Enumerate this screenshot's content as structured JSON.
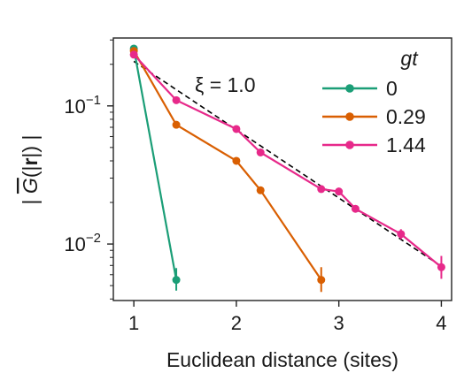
{
  "chart_data": {
    "type": "line",
    "xlabel": "Euclidean distance (sites)",
    "ylabel": "|G(|r|)|",
    "ylabel_parts": {
      "open": "| ",
      "symbol": "G",
      "inner_open": "(|",
      "bold": "r",
      "inner_close": "|)",
      "close": " |"
    },
    "xlim": [
      0.8,
      4.1
    ],
    "ylim": [
      0.0039,
      0.31
    ],
    "yscale": "log",
    "xticks": [
      1,
      2,
      3,
      4
    ],
    "xtick_labels": [
      "1",
      "2",
      "3",
      "4"
    ],
    "yticks": [
      0.01,
      0.1
    ],
    "ytick_labels": [
      {
        "base": "10",
        "exp": "−2"
      },
      {
        "base": "10",
        "exp": "−1"
      }
    ],
    "legend_title": "gt",
    "legend_position": "upper-right",
    "annotation": "ξ = 1.0",
    "fit_line": {
      "style": "dashed",
      "color": "#000000",
      "x": [
        1.0,
        4.0
      ],
      "y": [
        0.21,
        0.0069
      ]
    },
    "series": [
      {
        "name": "0",
        "color": "#1b9e77",
        "x": [
          1.0,
          1.414
        ],
        "y": [
          0.26,
          0.0055
        ],
        "err_low": [
          0.255,
          0.0046
        ],
        "err_high": [
          0.265,
          0.0067
        ]
      },
      {
        "name": "0.29",
        "color": "#d95f02",
        "x": [
          1.0,
          1.414,
          2.0,
          2.236,
          2.828
        ],
        "y": [
          0.25,
          0.073,
          0.04,
          0.0245,
          0.0055
        ],
        "err_low": [
          0.245,
          0.071,
          0.039,
          0.024,
          0.0045
        ],
        "err_high": [
          0.255,
          0.075,
          0.041,
          0.025,
          0.0068
        ]
      },
      {
        "name": "1.44",
        "color": "#e7298a",
        "x": [
          1.0,
          1.414,
          2.0,
          2.236,
          2.828,
          3.0,
          3.162,
          3.606,
          4.0
        ],
        "y": [
          0.235,
          0.11,
          0.068,
          0.046,
          0.025,
          0.024,
          0.018,
          0.0118,
          0.0068
        ],
        "err_low": [
          0.23,
          0.108,
          0.066,
          0.045,
          0.0245,
          0.0235,
          0.0176,
          0.0108,
          0.0056
        ],
        "err_high": [
          0.24,
          0.112,
          0.07,
          0.047,
          0.0255,
          0.0245,
          0.0184,
          0.0128,
          0.0082
        ]
      }
    ]
  }
}
